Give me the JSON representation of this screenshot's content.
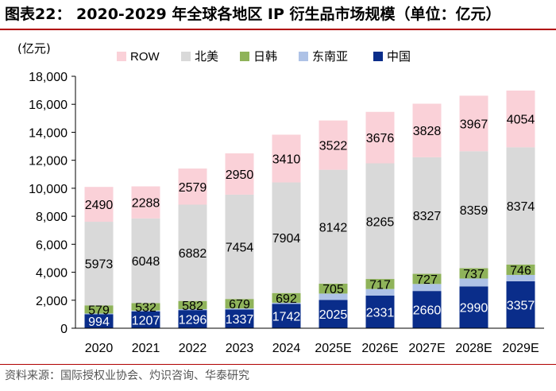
{
  "header": {
    "title": "图表22： 2020-2029 年全球各地区 IP 衍生品市场规模（单位：亿元）"
  },
  "footer": {
    "source": "资料来源：国际授权业协会、灼识咨询、华泰研究"
  },
  "colors": {
    "ROW": "#fad1d8",
    "north_america": "#d9d9d9",
    "japan_korea": "#8fb35a",
    "southeast_asia": "#aec2e6",
    "china": "#0a2d8a",
    "rule": "#b00000"
  },
  "chart_data": {
    "type": "bar",
    "stacked": true,
    "title": "2020-2029 年全球各地区 IP 衍生品市场规模（单位：亿元）",
    "unit_label": "(亿元)",
    "xlabel": "",
    "ylabel": "(亿元)",
    "ylim": [
      0,
      18000
    ],
    "yticks": [
      0,
      2000,
      4000,
      6000,
      8000,
      10000,
      12000,
      14000,
      16000,
      18000
    ],
    "ytick_labels": [
      "0",
      "2,000",
      "4,000",
      "6,000",
      "8,000",
      "10,000",
      "12,000",
      "14,000",
      "16,000",
      "18,000"
    ],
    "categories": [
      "2020",
      "2021",
      "2022",
      "2023",
      "2024",
      "2025E",
      "2026E",
      "2027E",
      "2028E",
      "2029E"
    ],
    "legend_position": "top",
    "grid": false,
    "series": [
      {
        "name": "中国",
        "key": "china",
        "labeled": true,
        "values": [
          994,
          1207,
          1296,
          1337,
          1742,
          2025,
          2331,
          2660,
          2990,
          3357
        ]
      },
      {
        "name": "东南亚",
        "key": "southeast_asia",
        "labeled": false,
        "values": [
          60,
          60,
          70,
          75,
          80,
          450,
          470,
          500,
          560,
          450
        ]
      },
      {
        "name": "日韩",
        "key": "japan_korea",
        "labeled": true,
        "values": [
          579,
          532,
          582,
          679,
          692,
          705,
          717,
          727,
          737,
          746
        ]
      },
      {
        "name": "北美",
        "key": "north_america",
        "labeled": true,
        "values": [
          5973,
          6048,
          6882,
          7454,
          7904,
          8142,
          8265,
          8327,
          8359,
          8374
        ]
      },
      {
        "name": "ROW",
        "key": "ROW",
        "labeled": true,
        "values": [
          2490,
          2288,
          2579,
          2950,
          3410,
          3522,
          3676,
          3828,
          3967,
          4054
        ]
      }
    ],
    "legend_order": [
      "ROW",
      "北美",
      "日韩",
      "东南亚",
      "中国"
    ]
  }
}
